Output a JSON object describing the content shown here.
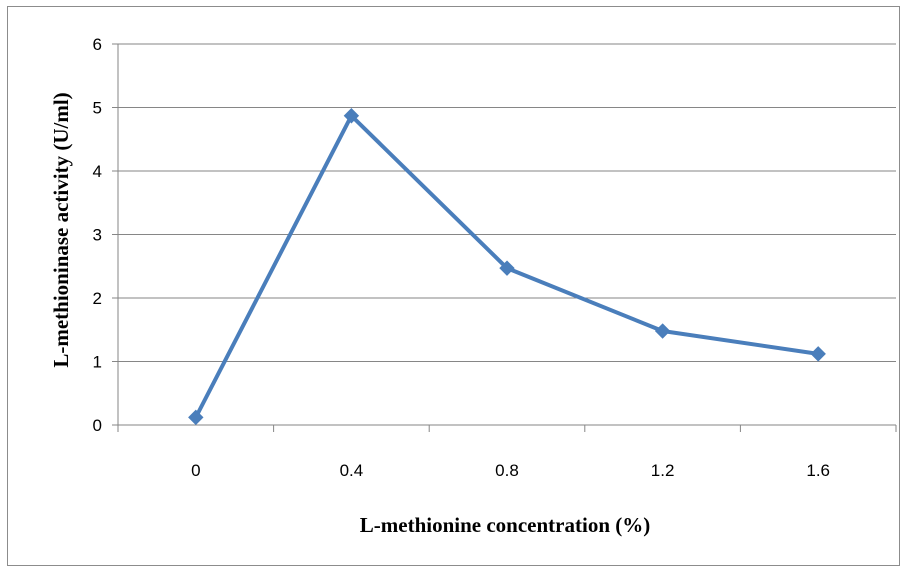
{
  "chart_data": {
    "type": "line",
    "title": "",
    "xlabel": "L-methionine concentration (%)",
    "ylabel": "L-methioninase activity (U/ml)",
    "categories": [
      "0",
      "0.4",
      "0.8",
      "1.2",
      "1.6"
    ],
    "series": [
      {
        "values": [
          0.12,
          4.87,
          2.47,
          1.48,
          1.12
        ]
      }
    ],
    "ylim": [
      0,
      6
    ],
    "yticks": [
      "0",
      "1",
      "2",
      "3",
      "4",
      "5",
      "6"
    ],
    "grid": "horizontal",
    "legend": "none",
    "colors": {
      "series": "#4a7ebb",
      "grid": "#868686",
      "axis": "#868686"
    }
  }
}
